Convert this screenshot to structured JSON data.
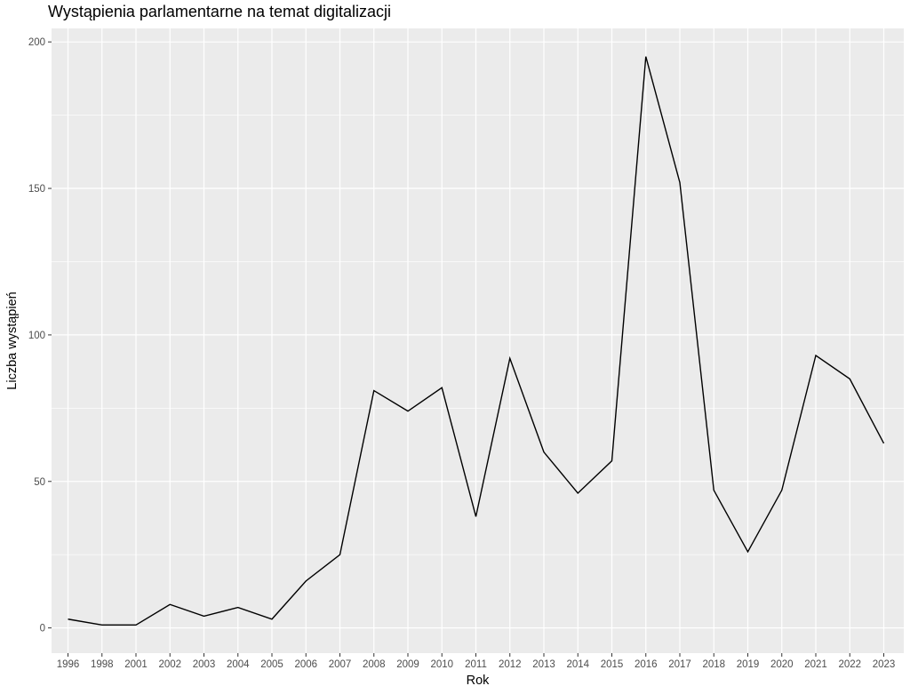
{
  "chart_data": {
    "type": "line",
    "title": "Wystąpienia parlamentarne na temat digitalizacji",
    "xlabel": "Rok",
    "ylabel": "Liczba wystąpień",
    "categories": [
      "1996",
      "1998",
      "2001",
      "2002",
      "2003",
      "2004",
      "2005",
      "2006",
      "2007",
      "2008",
      "2009",
      "2010",
      "2011",
      "2012",
      "2013",
      "2014",
      "2015",
      "2016",
      "2017",
      "2018",
      "2019",
      "2020",
      "2021",
      "2022",
      "2023"
    ],
    "series": [
      {
        "values": [
          3,
          1,
          1,
          8,
          4,
          7,
          3,
          16,
          25,
          81,
          74,
          82,
          38,
          92,
          60,
          46,
          57,
          195,
          152,
          47,
          26,
          47,
          93,
          85,
          63
        ]
      }
    ],
    "ylim": [
      -8.6,
      204.6
    ],
    "yticks": [
      0,
      50,
      100,
      150,
      200
    ],
    "grid": true,
    "legend": "none",
    "colors": {
      "panel_background": "#ebebeb",
      "grid_major": "#ffffff",
      "line": "#000000",
      "tick_text": "#4d4d4d"
    }
  }
}
